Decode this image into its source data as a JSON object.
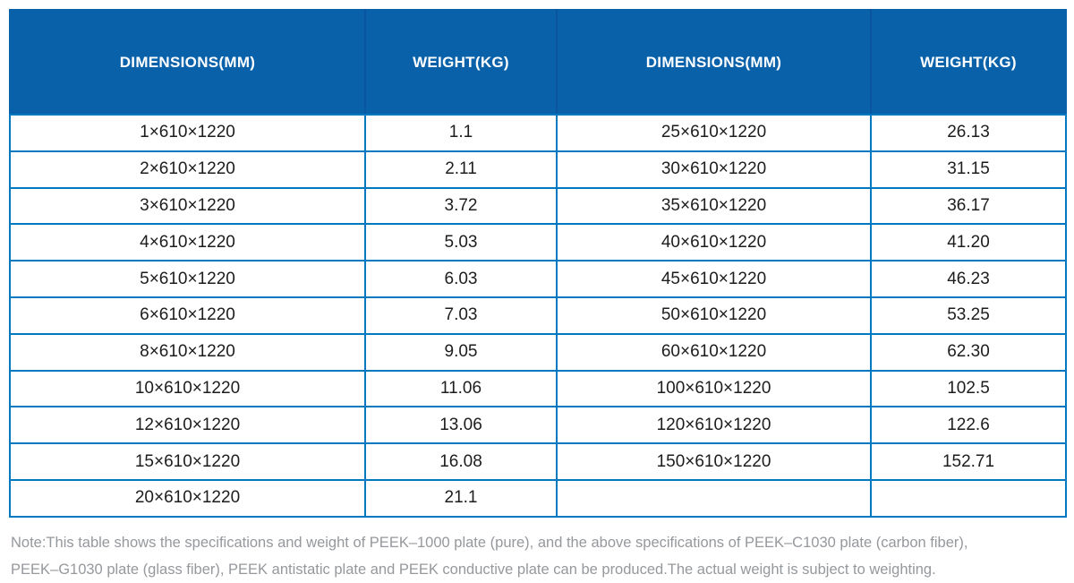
{
  "table": {
    "columns": [
      "DIMENSIONS(MM)",
      "WEIGHT(KG)",
      "DIMENSIONS(MM)",
      "WEIGHT(KG)"
    ],
    "rows": [
      [
        "1×610×1220",
        "1.1",
        "25×610×1220",
        "26.13"
      ],
      [
        "2×610×1220",
        "2.11",
        "30×610×1220",
        "31.15"
      ],
      [
        "3×610×1220",
        "3.72",
        "35×610×1220",
        "36.17"
      ],
      [
        "4×610×1220",
        "5.03",
        "40×610×1220",
        "41.20"
      ],
      [
        "5×610×1220",
        "6.03",
        "45×610×1220",
        "46.23"
      ],
      [
        "6×610×1220",
        "7.03",
        "50×610×1220",
        "53.25"
      ],
      [
        "8×610×1220",
        "9.05",
        "60×610×1220",
        "62.30"
      ],
      [
        "10×610×1220",
        "11.06",
        "100×610×1220",
        "102.5"
      ],
      [
        "12×610×1220",
        "13.06",
        "120×610×1220",
        "122.6"
      ],
      [
        "15×610×1220",
        "16.08",
        "150×610×1220",
        "152.71"
      ],
      [
        "20×610×1220",
        "21.1",
        "",
        ""
      ]
    ]
  },
  "note": {
    "line1": "Note:This table shows the specifications and weight of PEEK–1000 plate (pure), and the above specifications of PEEK–C1030 plate (carbon fiber),",
    "line2": "PEEK–G1030 plate (glass fiber), PEEK antistatic plate and PEEK conductive plate can be produced.The actual weight is subject to weighting."
  },
  "colors": {
    "header_bg": "#0961aa",
    "header_divider": "#0b559e",
    "grid_line": "#0079c0",
    "body_text": "#1d1d1f",
    "note_text": "#95989c"
  }
}
